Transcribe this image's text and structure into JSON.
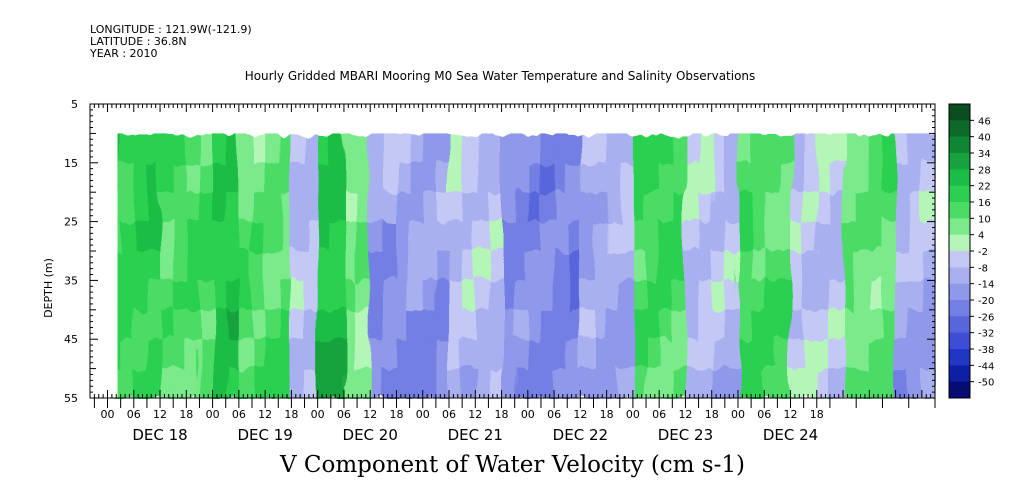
{
  "header": {
    "longitude": "LONGITUDE : 121.9W(-121.9)",
    "latitude": "LATITUDE : 36.8N",
    "year": "YEAR : 2010"
  },
  "chart_data": {
    "type": "heatmap",
    "title": "Hourly Gridded MBARI Mooring M0 Sea Water Temperature and Salinity Observations",
    "xlabel": "V Component of Water Velocity (cm s-1)",
    "ylabel": "DEPTH (m)",
    "y_ticks": [
      5,
      15,
      25,
      35,
      45,
      55
    ],
    "ylim": [
      5,
      55
    ],
    "y_inverted": true,
    "data_depth_range": [
      10,
      55
    ],
    "x_range_hours": [
      -4,
      189
    ],
    "x_hour_ticks": [
      "00",
      "06",
      "12",
      "18",
      "00",
      "06",
      "12",
      "18",
      "00",
      "06",
      "12",
      "18",
      "00",
      "06",
      "12",
      "18",
      "00",
      "06",
      "12",
      "18",
      "00",
      "06",
      "12",
      "18",
      "00",
      "06",
      "12",
      "18"
    ],
    "x_day_labels": [
      "DEC 18",
      "DEC 19",
      "DEC 20",
      "DEC 21",
      "DEC 22",
      "DEC 23",
      "DEC 24"
    ],
    "colorbar": {
      "labels": [
        "46",
        "40",
        "34",
        "28",
        "22",
        "16",
        "10",
        "4",
        "-2",
        "-8",
        "-14",
        "-20",
        "-26",
        "-32",
        "-38",
        "-44",
        "-50"
      ],
      "colors": [
        "#0a4d1f",
        "#0c6a28",
        "#0f8732",
        "#14a33c",
        "#1cbd45",
        "#2ad04f",
        "#4bdc66",
        "#7aea8a",
        "#b4f5b8",
        "#c4c8f5",
        "#a9b0ef",
        "#8f98e9",
        "#737fe3",
        "#5866dc",
        "#3d4ed4",
        "#2236c6",
        "#0d1fa5",
        "#060c74"
      ]
    },
    "daily_pattern": [
      {
        "hour_start": 0,
        "hour_end": 12,
        "value": 18
      },
      {
        "hour_start": 12,
        "hour_end": 24,
        "value": 12
      },
      {
        "hour_start": 24,
        "hour_end": 30,
        "value": 20
      },
      {
        "hour_start": 30,
        "hour_end": 42,
        "value": 10
      },
      {
        "hour_start": 42,
        "hour_end": 48,
        "value": -4
      },
      {
        "hour_start": 48,
        "hour_end": 54,
        "value": 24
      },
      {
        "hour_start": 54,
        "hour_end": 60,
        "value": 8
      },
      {
        "hour_start": 60,
        "hour_end": 78,
        "value": -14
      },
      {
        "hour_start": 78,
        "hour_end": 90,
        "value": -6
      },
      {
        "hour_start": 90,
        "hour_end": 108,
        "value": -18
      },
      {
        "hour_start": 108,
        "hour_end": 120,
        "value": -8
      },
      {
        "hour_start": 120,
        "hour_end": 132,
        "value": 14
      },
      {
        "hour_start": 132,
        "hour_end": 144,
        "value": -6
      },
      {
        "hour_start": 144,
        "hour_end": 156,
        "value": 12
      },
      {
        "hour_start": 156,
        "hour_end": 168,
        "value": -2
      },
      {
        "hour_start": 168,
        "hour_end": 180,
        "value": 10
      },
      {
        "hour_start": 180,
        "hour_end": 189,
        "value": -8
      }
    ]
  }
}
